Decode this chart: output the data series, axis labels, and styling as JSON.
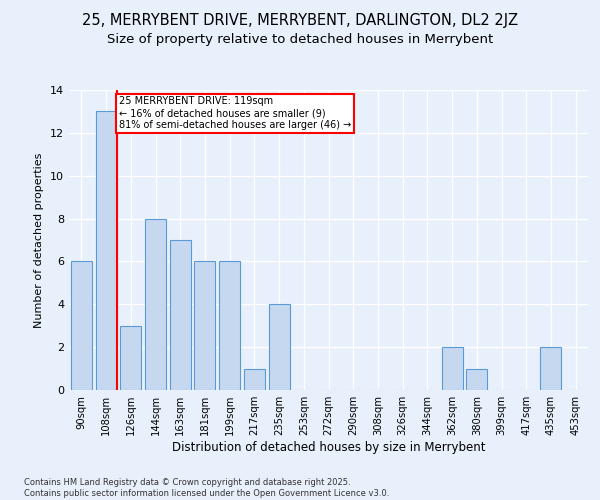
{
  "title1": "25, MERRYBENT DRIVE, MERRYBENT, DARLINGTON, DL2 2JZ",
  "title2": "Size of property relative to detached houses in Merrybent",
  "xlabel": "Distribution of detached houses by size in Merrybent",
  "ylabel": "Number of detached properties",
  "bins": [
    "90sqm",
    "108sqm",
    "126sqm",
    "144sqm",
    "163sqm",
    "181sqm",
    "199sqm",
    "217sqm",
    "235sqm",
    "253sqm",
    "272sqm",
    "290sqm",
    "308sqm",
    "326sqm",
    "344sqm",
    "362sqm",
    "380sqm",
    "399sqm",
    "417sqm",
    "435sqm",
    "453sqm"
  ],
  "values": [
    6,
    13,
    3,
    8,
    7,
    6,
    6,
    1,
    4,
    0,
    0,
    0,
    0,
    0,
    0,
    2,
    1,
    0,
    0,
    2,
    0
  ],
  "bar_color": "#c5d8f0",
  "bar_edge_color": "#5b9bd5",
  "red_line_x": 1.425,
  "annotation_line1": "25 MERRYBENT DRIVE: 119sqm",
  "annotation_line2": "← 16% of detached houses are smaller (9)",
  "annotation_line3": "81% of semi-detached houses are larger (46) →",
  "annotation_box_color": "white",
  "annotation_box_edge_color": "red",
  "footnote1": "Contains HM Land Registry data © Crown copyright and database right 2025.",
  "footnote2": "Contains public sector information licensed under the Open Government Licence v3.0.",
  "ylim": [
    0,
    14
  ],
  "yticks": [
    0,
    2,
    4,
    6,
    8,
    10,
    12,
    14
  ],
  "background_color": "#e8f0fb",
  "grid_color": "white",
  "title_fontsize": 10.5,
  "subtitle_fontsize": 9.5
}
